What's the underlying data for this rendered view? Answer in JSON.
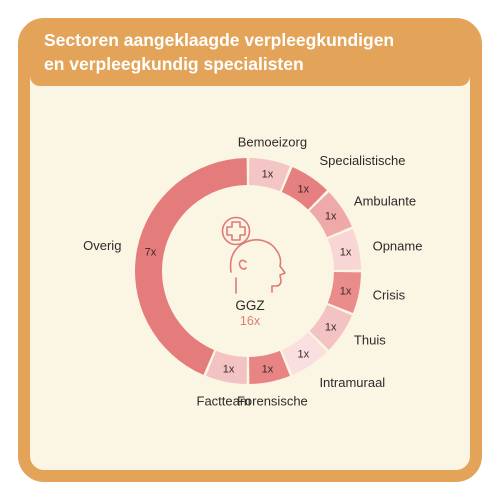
{
  "header": {
    "title_line1": "Sectoren aangeklaagde verpleegkundigen",
    "title_line2": "en verpleegkundig specialisten"
  },
  "center": {
    "icon": "head-medical-cross-icon",
    "name": "GGZ",
    "total": "16x"
  },
  "colors": {
    "frame": "#e3a459",
    "background": "#fbf5e4",
    "icon_stroke": "#e07a76",
    "total_text": "#e07a76"
  },
  "chart_data": {
    "type": "pie",
    "title": "Sectoren aangeklaagde verpleegkundigen en verpleegkundig specialisten",
    "donut": true,
    "slices": [
      {
        "name": "Bemoeizorg",
        "value": 1,
        "label": "1x",
        "color": "#f3c5c5"
      },
      {
        "name": "Specialistische",
        "value": 1,
        "label": "1x",
        "color": "#e68080"
      },
      {
        "name": "Ambulante",
        "value": 1,
        "label": "1x",
        "color": "#f0a9a9"
      },
      {
        "name": "Opname",
        "value": 1,
        "label": "1x",
        "color": "#f8d6d6"
      },
      {
        "name": "Crisis",
        "value": 1,
        "label": "1x",
        "color": "#ea8c8c"
      },
      {
        "name": "Thuis",
        "value": 1,
        "label": "1x",
        "color": "#f3c2c2"
      },
      {
        "name": "Intramuraal",
        "value": 1,
        "label": "1x",
        "color": "#f9dfdf"
      },
      {
        "name": "Forensische",
        "value": 1,
        "label": "1x",
        "color": "#e88484"
      },
      {
        "name": "Factteam",
        "value": 1,
        "label": "1x",
        "color": "#f3c2c2"
      },
      {
        "name": "Overig",
        "value": 7,
        "label": "7x",
        "color": "#e47c7c"
      }
    ]
  }
}
